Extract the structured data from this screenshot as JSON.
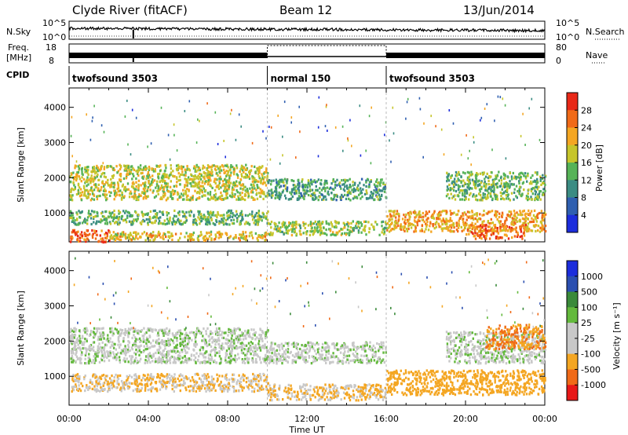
{
  "header": {
    "station": "Clyde River (fitACF)",
    "beam": "Beam 12",
    "date": "13/Jun/2014"
  },
  "top_panel": {
    "left_label": "N.Sky",
    "right_label": "N.Search",
    "left_ticks": [
      "10^5",
      "10^0"
    ],
    "right_ticks": [
      "10^5",
      "10^0"
    ]
  },
  "freq_panel": {
    "left_label_1": "Freq.",
    "left_label_2": "[MHz]",
    "right_label": "Nave",
    "left_ticks": [
      "18",
      "8"
    ],
    "right_ticks": [
      "80",
      "0"
    ]
  },
  "cpid": {
    "label": "CPID",
    "segments": [
      {
        "name": "twofsound 3503",
        "start_h": 0,
        "end_h": 10
      },
      {
        "name": "normal 150",
        "start_h": 10,
        "end_h": 16
      },
      {
        "name": "twofsound 3503",
        "start_h": 16,
        "end_h": 24
      }
    ]
  },
  "colors": {
    "power": [
      "#1c2ddc",
      "#2f5fb0",
      "#3b8c83",
      "#56b357",
      "#c6c52b",
      "#f4a622",
      "#f06a18",
      "#e82817"
    ],
    "velocity": [
      "#e81818",
      "#f06a18",
      "#f4a622",
      "#c8c8c8",
      "#c8c8c8",
      "#63b93c",
      "#3a8a3a",
      "#2b4fb0",
      "#1c2ddc"
    ]
  },
  "chart_data": [
    {
      "type": "heatmap",
      "title": "Power",
      "ylabel": "Slant Range [km]",
      "xlabel": "Time UT",
      "x_range_h": [
        0,
        24
      ],
      "ylim": [
        180,
        4550
      ],
      "y_ticks": [
        1000,
        2000,
        3000,
        4000
      ],
      "x_ticks": [
        "00:00",
        "04:00",
        "08:00",
        "12:00",
        "16:00",
        "20:00",
        "00:00"
      ],
      "colorbar": {
        "label": "Power [dB]",
        "ticks": [
          "28",
          "24",
          "20",
          "16",
          "12",
          "8",
          "4"
        ],
        "range": [
          0,
          32
        ]
      },
      "bands": [
        {
          "t0": 0,
          "t1": 10,
          "r0": 1400,
          "r1": 2400,
          "level": 20
        },
        {
          "t0": 0,
          "t1": 10,
          "r0": 700,
          "r1": 1100,
          "level": 16
        },
        {
          "t0": 0,
          "t1": 2,
          "r0": 200,
          "r1": 550,
          "level": 28
        },
        {
          "t0": 2,
          "t1": 10,
          "r0": 250,
          "r1": 500,
          "level": 22
        },
        {
          "t0": 10,
          "t1": 16,
          "r0": 1400,
          "r1": 2000,
          "level": 14
        },
        {
          "t0": 10,
          "t1": 16,
          "r0": 400,
          "r1": 800,
          "level": 18
        },
        {
          "t0": 16,
          "t1": 24,
          "r0": 500,
          "r1": 1100,
          "level": 24
        },
        {
          "t0": 19,
          "t1": 24,
          "r0": 1400,
          "r1": 2200,
          "level": 16
        },
        {
          "t0": 20,
          "t1": 23,
          "r0": 300,
          "r1": 700,
          "level": 28
        }
      ]
    },
    {
      "type": "heatmap",
      "title": "Velocity",
      "ylabel": "Slant Range [km]",
      "xlabel": "Time UT",
      "x_range_h": [
        0,
        24
      ],
      "ylim": [
        180,
        4550
      ],
      "y_ticks": [
        1000,
        2000,
        3000,
        4000
      ],
      "x_ticks": [
        "00:00",
        "04:00",
        "08:00",
        "12:00",
        "16:00",
        "20:00",
        "00:00"
      ],
      "colorbar": {
        "label": "Velocity [m s⁻¹]",
        "ticks": [
          "1000",
          "500",
          "100",
          "25",
          "-25",
          "-100",
          "-500",
          "-1000"
        ]
      },
      "bands": [
        {
          "t0": 0,
          "t1": 10,
          "r0": 1400,
          "r1": 2400,
          "level": 0
        },
        {
          "t0": 0,
          "t1": 10,
          "r0": 600,
          "r1": 1100,
          "level": -100
        },
        {
          "t0": 10,
          "t1": 16,
          "r0": 1400,
          "r1": 2000,
          "level": 0
        },
        {
          "t0": 10,
          "t1": 16,
          "r0": 350,
          "r1": 800,
          "level": -100
        },
        {
          "t0": 16,
          "t1": 24,
          "r0": 500,
          "r1": 1200,
          "level": -300
        },
        {
          "t0": 19,
          "t1": 24,
          "r0": 1400,
          "r1": 2300,
          "level": 0
        },
        {
          "t0": 21,
          "t1": 24,
          "r0": 1800,
          "r1": 2500,
          "level": -500
        }
      ]
    }
  ]
}
